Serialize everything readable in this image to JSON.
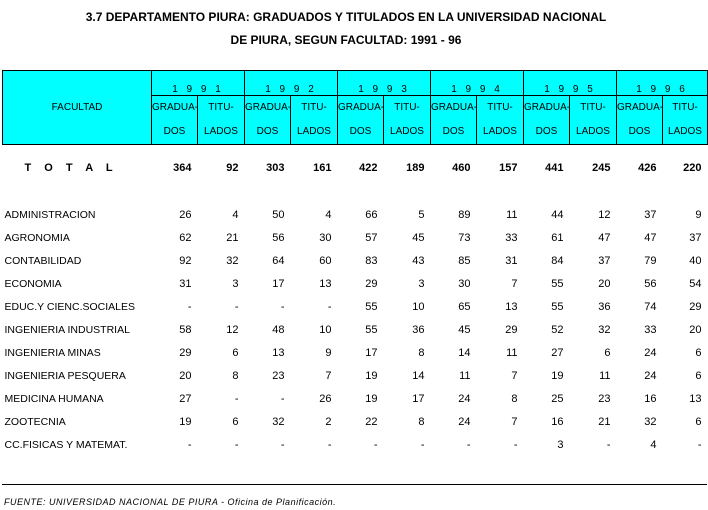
{
  "title": {
    "line1": "3.7  DEPARTAMENTO PIURA: GRADUADOS Y TITULADOS EN LA UNIVERSIDAD NACIONAL",
    "line2": "DE PIURA, SEGUN FACULTAD: 1991 - 96"
  },
  "table": {
    "facultad_header": "FACULTAD",
    "years": [
      "1 9 9 1",
      "1 9 9 2",
      "1 9 9 3",
      "1 9 9 4",
      "1 9 9 5",
      "1 9 9 6"
    ],
    "sub_headers": {
      "graduados_1": "GRADUA-",
      "graduados_2": "DOS",
      "titulados_1": "TITU-",
      "titulados_2": "LADOS"
    },
    "total": {
      "label": "T O T A L",
      "values": [
        "364",
        "92",
        "303",
        "161",
        "422",
        "189",
        "460",
        "157",
        "441",
        "245",
        "426",
        "220"
      ]
    },
    "rows": [
      {
        "label": "ADMINISTRACION",
        "values": [
          "26",
          "4",
          "50",
          "4",
          "66",
          "5",
          "89",
          "11",
          "44",
          "12",
          "37",
          "9"
        ]
      },
      {
        "label": "AGRONOMIA",
        "values": [
          "62",
          "21",
          "56",
          "30",
          "57",
          "45",
          "73",
          "33",
          "61",
          "47",
          "47",
          "37"
        ]
      },
      {
        "label": "CONTABILIDAD",
        "values": [
          "92",
          "32",
          "64",
          "60",
          "83",
          "43",
          "85",
          "31",
          "84",
          "37",
          "79",
          "40"
        ]
      },
      {
        "label": "ECONOMIA",
        "values": [
          "31",
          "3",
          "17",
          "13",
          "29",
          "3",
          "30",
          "7",
          "55",
          "20",
          "56",
          "54"
        ]
      },
      {
        "label": "EDUC.Y CIENC.SOCIALES",
        "values": [
          "-",
          "-",
          "-",
          "-",
          "55",
          "10",
          "65",
          "13",
          "55",
          "36",
          "74",
          "29"
        ]
      },
      {
        "label": "INGENIERIA INDUSTRIAL",
        "values": [
          "58",
          "12",
          "48",
          "10",
          "55",
          "36",
          "45",
          "29",
          "52",
          "32",
          "33",
          "20"
        ]
      },
      {
        "label": "INGENIERIA MINAS",
        "values": [
          "29",
          "6",
          "13",
          "9",
          "17",
          "8",
          "14",
          "11",
          "27",
          "6",
          "24",
          "6"
        ]
      },
      {
        "label": "INGENIERIA PESQUERA",
        "values": [
          "20",
          "8",
          "23",
          "7",
          "19",
          "14",
          "11",
          "7",
          "19",
          "11",
          "24",
          "6"
        ]
      },
      {
        "label": "MEDICINA HUMANA",
        "values": [
          "27",
          "-",
          "-",
          "26",
          "19",
          "17",
          "24",
          "8",
          "25",
          "23",
          "16",
          "13"
        ]
      },
      {
        "label": "ZOOTECNIA",
        "values": [
          "19",
          "6",
          "32",
          "2",
          "22",
          "8",
          "24",
          "7",
          "16",
          "21",
          "32",
          "6"
        ]
      },
      {
        "label": "CC.FISICAS Y MATEMAT.",
        "values": [
          "-",
          "-",
          "-",
          "-",
          "-",
          "-",
          "-",
          "-",
          "3",
          "-",
          "4",
          "-"
        ]
      }
    ]
  },
  "source": "FUENTE:  UNIVERSIDAD NACIONAL DE PIURA - Oficina de Planificación."
}
